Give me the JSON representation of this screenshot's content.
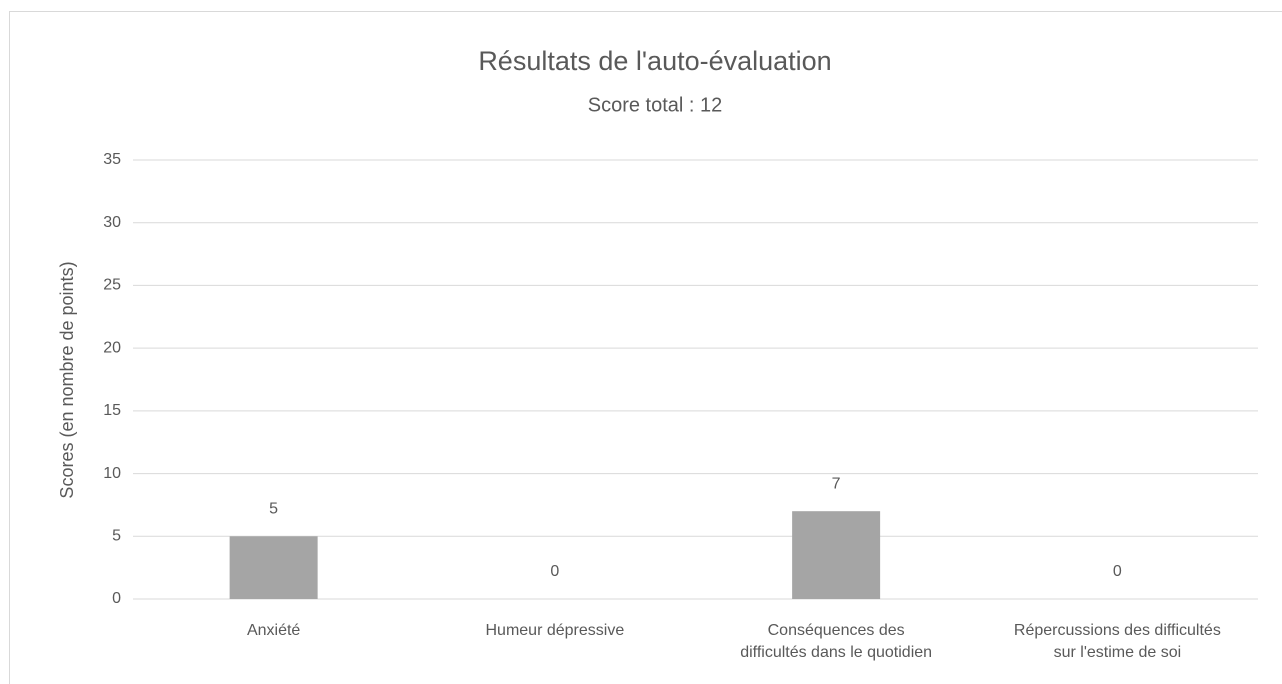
{
  "chart_data": {
    "type": "bar",
    "title": "Résultats de l'auto-évaluation",
    "subtitle": "Score total : 12",
    "y_label": "Scores (en nombre de points)",
    "categories": [
      "Anxiété",
      "Humeur dépressive",
      "Conséquences des\ndifficultés dans le quotidien",
      "Répercussions des difficultés\nsur l'estime de soi"
    ],
    "values": [
      5,
      0,
      7,
      0
    ],
    "color": "#a5a5a5",
    "ylim": [
      0,
      35
    ],
    "yticks": [
      0,
      5,
      10,
      15,
      20,
      25,
      30,
      35
    ],
    "grid": true,
    "data_labels": true
  }
}
